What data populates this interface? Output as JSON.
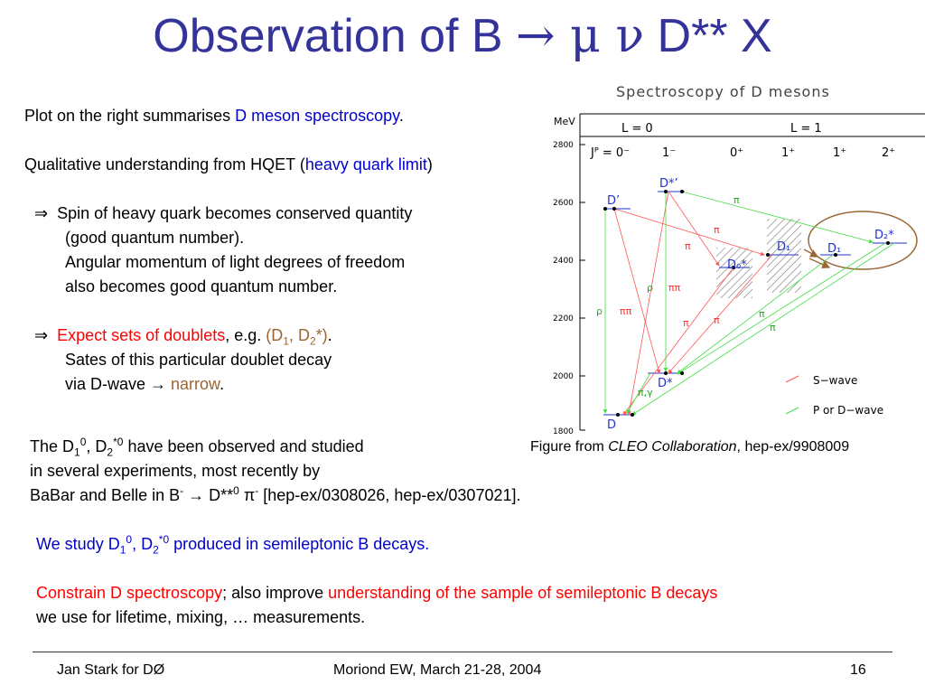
{
  "title": {
    "prefix": "Observation of B ",
    "arrow": "→",
    "mu": " μ ",
    "nu": "ν",
    "suffix": " D** X"
  },
  "left_text": {
    "l1_a": "Plot on the right summarises ",
    "l1_b": "D meson spectroscopy",
    "l1_c": ".",
    "l2_a": "Qualitative understanding from HQET (",
    "l2_b": "heavy quark limit",
    "l2_c": ")",
    "implies": "⇒",
    "l3": "Spin of heavy quark becomes conserved quantity",
    "l4": "(good quantum number).",
    "l5": "Angular momentum of light degrees of freedom",
    "l6": "also becomes good quantum number.",
    "l7_a": "Expect sets of doublets",
    "l7_b": ", e.g. ",
    "l7_c1": "(D",
    "l7_c_sub1": "1",
    "l7_c2": ", D",
    "l7_c_sub2": "2",
    "l7_c3": "*)",
    "l7_d": ".",
    "l8": "Sates of this particular doublet decay",
    "l9_a": "via D-wave ",
    "l9_arrow": "→",
    "l9_b": " narrow",
    "l9_c": "."
  },
  "body_text": {
    "b1_a": "The D",
    "b1_sub1": "1",
    "b1_sup1": "0",
    "b1_b": ", D",
    "b1_sub2": "2",
    "b1_sup2": "*0",
    "b1_c": " have been observed and studied",
    "b2": "in several experiments, most recently by",
    "b3_a": "BaBar and Belle in B",
    "b3_sup1": "-",
    "b3_arrow": " → ",
    "b3_b": "D**",
    "b3_sup2": "0",
    "b3_pi": " π",
    "b3_sup3": "-",
    "b3_c": " [hep-ex/0308026, hep-ex/0307021].",
    "b4_a": "We study D",
    "b4_sub1": "1",
    "b4_sup1": "0",
    "b4_b": ", D",
    "b4_sub2": "2",
    "b4_sup2": "*0",
    "b4_c": " produced in semileptonic B decays.",
    "b5_a": "Constrain D spectroscopy",
    "b5_b": "; also improve ",
    "b5_c": "understanding of the sample of semileptonic B decays",
    "b6": "we use for lifetime, mixing, … measurements."
  },
  "figure": {
    "caption_a": "Figure from ",
    "caption_b": "CLEO Collaboration",
    "caption_c": ", hep-ex/9908009",
    "heading": "Spectroscopy of D mesons",
    "unit": "MeV",
    "y_ticks": [
      "2800",
      "2600",
      "2400",
      "2200",
      "2000",
      "1800"
    ],
    "l0": "L = 0",
    "l1": "L = 1",
    "jp_label": "Jᴾ = 0⁻",
    "jp_values": [
      "1⁻",
      "0⁺",
      "1⁺",
      "1⁺",
      "2⁺"
    ],
    "states": {
      "d": "D",
      "dstar": "D*",
      "dprime": "D’",
      "dstarprime": "D*’",
      "d0star": "D₀*",
      "d1a": "D₁",
      "d1b": "D₁",
      "d2star": "D₂*"
    },
    "decay_labels": {
      "pi": "π",
      "pipi": "ππ",
      "rho": "ρ",
      "pigamma": "π,γ"
    },
    "legend_s": "S−wave",
    "legend_pd": "P or D−wave",
    "colors": {
      "s_wave": "#FF5555",
      "p_d_wave": "#44DD44",
      "ellipse": "#996633",
      "labels": "#2233CC"
    }
  },
  "footer": {
    "left": "Jan Stark for DØ",
    "center": "Moriond EW, March 21-28, 2004",
    "page": "16"
  }
}
